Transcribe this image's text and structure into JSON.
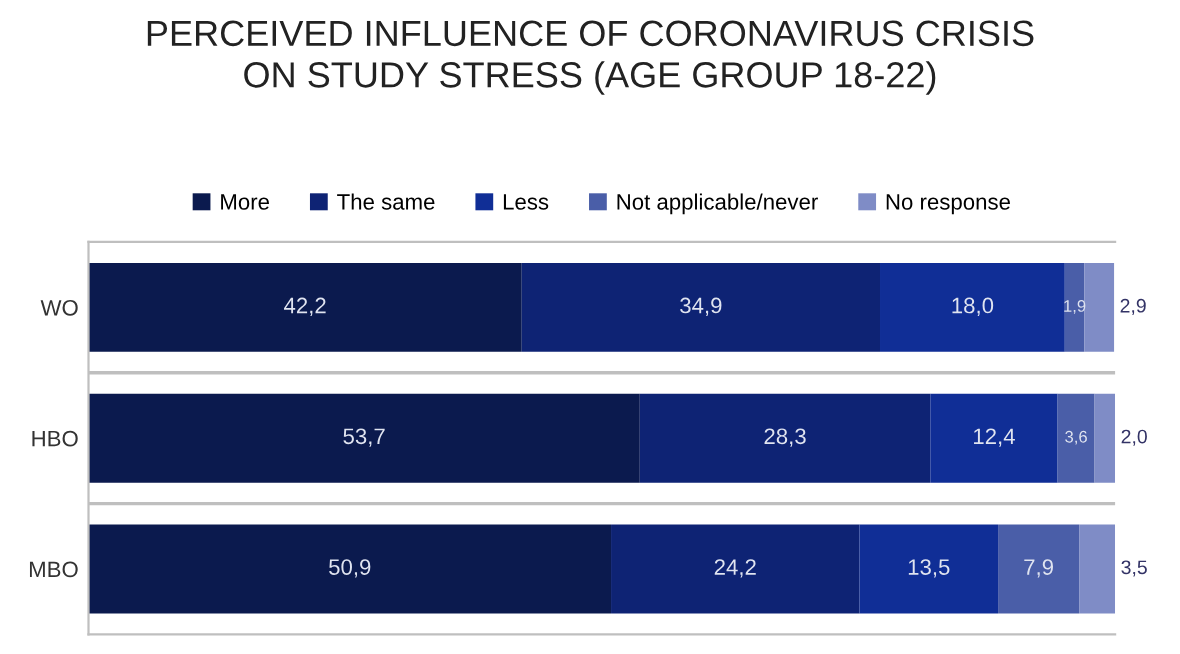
{
  "chart_data": {
    "type": "bar",
    "orientation": "horizontal",
    "stacked": true,
    "title": "PERCEIVED INFLUENCE OF CORONAVIRUS CRISIS\nON STUDY STRESS (AGE GROUP 18-22)",
    "categories": [
      "WO",
      "HBO",
      "MBO"
    ],
    "series": [
      {
        "name": "More",
        "color": "#0b1a4e",
        "values": [
          42.2,
          53.7,
          50.9
        ],
        "value_labels": [
          "42,2",
          "53,7",
          "50,9"
        ]
      },
      {
        "name": "The same",
        "color": "#0e2374",
        "values": [
          34.9,
          28.3,
          24.2
        ],
        "value_labels": [
          "34,9",
          "28,3",
          "24,2"
        ]
      },
      {
        "name": "Less",
        "color": "#102e96",
        "values": [
          18.0,
          12.4,
          13.5
        ],
        "value_labels": [
          "18,0",
          "12,4",
          "13,5"
        ]
      },
      {
        "name": "Not applicable/never",
        "color": "#4a5ea8",
        "values": [
          1.9,
          3.6,
          7.9
        ],
        "value_labels": [
          "1,9",
          "3,6",
          "7,9"
        ]
      },
      {
        "name": "No response",
        "color": "#7f8cc6",
        "values": [
          2.9,
          2.0,
          3.5
        ],
        "value_labels": [
          "2,9",
          "2,0",
          "3,5"
        ]
      }
    ],
    "legend": "top",
    "grid": "y"
  }
}
